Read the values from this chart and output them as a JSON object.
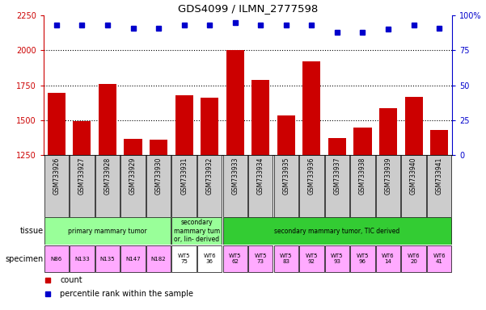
{
  "title": "GDS4099 / ILMN_2777598",
  "samples": [
    "GSM733926",
    "GSM733927",
    "GSM733928",
    "GSM733929",
    "GSM733930",
    "GSM733931",
    "GSM733932",
    "GSM733933",
    "GSM733934",
    "GSM733935",
    "GSM733936",
    "GSM733937",
    "GSM733938",
    "GSM733939",
    "GSM733940",
    "GSM733941"
  ],
  "counts": [
    1693,
    1492,
    1762,
    1364,
    1360,
    1678,
    1660,
    2000,
    1786,
    1531,
    1920,
    1373,
    1449,
    1588,
    1665,
    1429
  ],
  "percentile_ranks": [
    93,
    93,
    93,
    91,
    91,
    93,
    93,
    95,
    93,
    93,
    93,
    88,
    88,
    90,
    93,
    91
  ],
  "ylim_left": [
    1250,
    2250
  ],
  "ylim_right": [
    0,
    100
  ],
  "yticks_left": [
    1250,
    1500,
    1750,
    2000,
    2250
  ],
  "yticks_right": [
    0,
    25,
    50,
    75,
    100
  ],
  "bar_color": "#cc0000",
  "dot_color": "#0000cc",
  "background_color": "#ffffff",
  "tissue_groups": [
    {
      "label": "primary mammary tumor",
      "start": 0,
      "end": 4,
      "color": "#99ff99"
    },
    {
      "label": "secondary\nmammary tum\nor, lin- derived",
      "start": 5,
      "end": 6,
      "color": "#99ff99"
    },
    {
      "label": "secondary mammary tumor, TIC derived",
      "start": 7,
      "end": 15,
      "color": "#33cc33"
    }
  ],
  "specimen_entries": [
    {
      "label": "N86",
      "color": "#ffaaff"
    },
    {
      "label": "N133",
      "color": "#ffaaff"
    },
    {
      "label": "N135",
      "color": "#ffaaff"
    },
    {
      "label": "N147",
      "color": "#ffaaff"
    },
    {
      "label": "N182",
      "color": "#ffaaff"
    },
    {
      "label": "WT5\n75",
      "color": "#ffffff"
    },
    {
      "label": "WT6\n36",
      "color": "#ffffff"
    },
    {
      "label": "WT5\n62",
      "color": "#ffaaff"
    },
    {
      "label": "WT5\n73",
      "color": "#ffaaff"
    },
    {
      "label": "WT5\n83",
      "color": "#ffaaff"
    },
    {
      "label": "WT5\n92",
      "color": "#ffaaff"
    },
    {
      "label": "WT5\n93",
      "color": "#ffaaff"
    },
    {
      "label": "WT5\n96",
      "color": "#ffaaff"
    },
    {
      "label": "WT6\n14",
      "color": "#ffaaff"
    },
    {
      "label": "WT6\n20",
      "color": "#ffaaff"
    },
    {
      "label": "WT6\n41",
      "color": "#ffaaff"
    }
  ],
  "fig_width": 6.01,
  "fig_height": 3.84,
  "xticklabel_bg": "#cccccc"
}
